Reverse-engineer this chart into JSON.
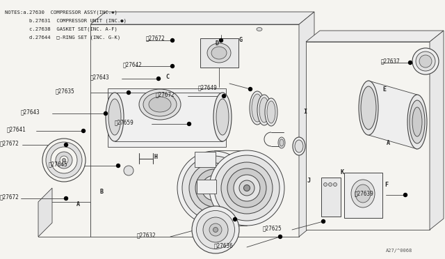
{
  "bg_color": "#f5f4f0",
  "line_color": "#404040",
  "text_color": "#202020",
  "notes_lines": [
    "NOTES:a.27630  COMPRESSOR ASSY(INC.✱)",
    "        b.27631  COMPRESSOR UNIT (INC.●)",
    "        c.27638  GASKET SET(INC. A-F)",
    "        d.27644  □-RING SET (INC. G-K)"
  ],
  "figsize": [
    6.4,
    3.72
  ],
  "dpi": 100
}
